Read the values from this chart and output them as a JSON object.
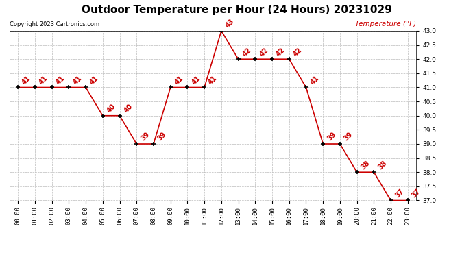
{
  "title": "Outdoor Temperature per Hour (24 Hours) 20231029",
  "copyright": "Copyright 2023 Cartronics.com",
  "legend_label": "Temperature (°F)",
  "hours": [
    "00:00",
    "01:00",
    "02:00",
    "03:00",
    "04:00",
    "05:00",
    "06:00",
    "07:00",
    "08:00",
    "09:00",
    "10:00",
    "11:00",
    "12:00",
    "13:00",
    "14:00",
    "15:00",
    "16:00",
    "17:00",
    "18:00",
    "19:00",
    "20:00",
    "21:00",
    "22:00",
    "23:00"
  ],
  "temperatures": [
    41,
    41,
    41,
    41,
    41,
    40,
    40,
    39,
    39,
    41,
    41,
    41,
    43,
    42,
    42,
    42,
    42,
    41,
    39,
    39,
    38,
    38,
    37,
    37
  ],
  "line_color": "#cc0000",
  "marker_color": "#000000",
  "label_color": "#cc0000",
  "grid_color": "#bbbbbb",
  "background_color": "#ffffff",
  "title_color": "#000000",
  "copyright_color": "#000000",
  "legend_color": "#cc0000",
  "ylim_min": 37.0,
  "ylim_max": 43.0,
  "title_fontsize": 11,
  "label_fontsize": 7,
  "tick_fontsize": 6.5,
  "copyright_fontsize": 6,
  "legend_fontsize": 7.5
}
